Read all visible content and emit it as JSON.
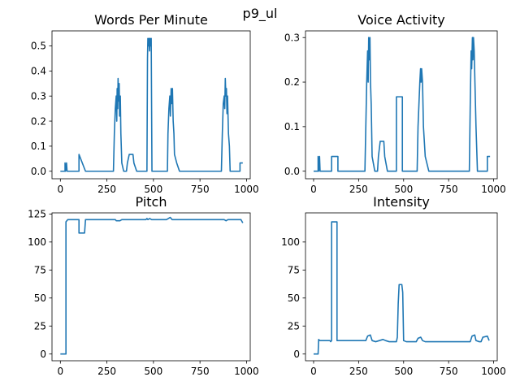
{
  "figure": {
    "suptitle": "p9_ul"
  },
  "chart_data": [
    {
      "type": "line",
      "title": "Words Per Minute",
      "xlim": [
        -45,
        1020
      ],
      "ylim": [
        -0.03,
        0.56
      ],
      "xticks": [
        0,
        250,
        500,
        750,
        1000
      ],
      "yticks": [
        0.0,
        0.1,
        0.2,
        0.3,
        0.4,
        0.5
      ],
      "ytick_decimals": 1,
      "series": [
        {
          "color": "#1f77b4",
          "points": [
            [
              0,
              0
            ],
            [
              25,
              0
            ],
            [
              25,
              0.033
            ],
            [
              28,
              0
            ],
            [
              33,
              0.033
            ],
            [
              36,
              0
            ],
            [
              100,
              0
            ],
            [
              100,
              0.067
            ],
            [
              135,
              0
            ],
            [
              285,
              0
            ],
            [
              290,
              0.15
            ],
            [
              295,
              0.25
            ],
            [
              300,
              0.3
            ],
            [
              303,
              0.2
            ],
            [
              305,
              0.33
            ],
            [
              308,
              0.25
            ],
            [
              310,
              0.37
            ],
            [
              313,
              0.28
            ],
            [
              316,
              0.35
            ],
            [
              318,
              0.22
            ],
            [
              322,
              0.3
            ],
            [
              325,
              0.15
            ],
            [
              330,
              0.033
            ],
            [
              340,
              0
            ],
            [
              355,
              0
            ],
            [
              360,
              0.033
            ],
            [
              370,
              0.067
            ],
            [
              390,
              0.067
            ],
            [
              395,
              0.033
            ],
            [
              410,
              0
            ],
            [
              465,
              0
            ],
            [
              468,
              0.45
            ],
            [
              470,
              0.53
            ],
            [
              473,
              0.5
            ],
            [
              476,
              0.53
            ],
            [
              479,
              0.48
            ],
            [
              482,
              0.53
            ],
            [
              485,
              0.5
            ],
            [
              488,
              0.53
            ],
            [
              492,
              0
            ],
            [
              575,
              0
            ],
            [
              578,
              0.15
            ],
            [
              583,
              0.25
            ],
            [
              588,
              0.3
            ],
            [
              591,
              0.22
            ],
            [
              595,
              0.33
            ],
            [
              598,
              0.27
            ],
            [
              602,
              0.33
            ],
            [
              606,
              0.2
            ],
            [
              610,
              0.15
            ],
            [
              613,
              0.067
            ],
            [
              625,
              0.033
            ],
            [
              640,
              0
            ],
            [
              865,
              0
            ],
            [
              870,
              0.15
            ],
            [
              875,
              0.27
            ],
            [
              880,
              0.3
            ],
            [
              883,
              0.25
            ],
            [
              886,
              0.37
            ],
            [
              889,
              0.3
            ],
            [
              892,
              0.33
            ],
            [
              895,
              0.23
            ],
            [
              898,
              0.3
            ],
            [
              903,
              0.15
            ],
            [
              908,
              0.1
            ],
            [
              912,
              0
            ],
            [
              965,
              0
            ],
            [
              965,
              0.033
            ],
            [
              980,
              0.033
            ]
          ]
        }
      ]
    },
    {
      "type": "line",
      "title": "Voice Activity",
      "xlim": [
        -45,
        1020
      ],
      "ylim": [
        -0.017,
        0.315
      ],
      "xticks": [
        0,
        250,
        500,
        750,
        1000
      ],
      "yticks": [
        0.0,
        0.1,
        0.2,
        0.3
      ],
      "ytick_decimals": 1,
      "series": [
        {
          "color": "#1f77b4",
          "points": [
            [
              0,
              0
            ],
            [
              25,
              0
            ],
            [
              25,
              0.033
            ],
            [
              28,
              0
            ],
            [
              33,
              0.033
            ],
            [
              36,
              0
            ],
            [
              100,
              0
            ],
            [
              100,
              0.033
            ],
            [
              135,
              0.033
            ],
            [
              135,
              0
            ],
            [
              285,
              0
            ],
            [
              290,
              0.1
            ],
            [
              295,
              0.2
            ],
            [
              300,
              0.27
            ],
            [
              303,
              0.2
            ],
            [
              306,
              0.3
            ],
            [
              310,
              0.25
            ],
            [
              313,
              0.3
            ],
            [
              316,
              0.2
            ],
            [
              320,
              0.15
            ],
            [
              325,
              0.033
            ],
            [
              340,
              0
            ],
            [
              355,
              0
            ],
            [
              360,
              0.033
            ],
            [
              370,
              0.067
            ],
            [
              390,
              0.067
            ],
            [
              395,
              0.033
            ],
            [
              410,
              0
            ],
            [
              460,
              0
            ],
            [
              460,
              0.167
            ],
            [
              493,
              0.167
            ],
            [
              493,
              0
            ],
            [
              575,
              0
            ],
            [
              580,
              0.1
            ],
            [
              585,
              0.15
            ],
            [
              590,
              0.2
            ],
            [
              594,
              0.23
            ],
            [
              597,
              0.2
            ],
            [
              600,
              0.23
            ],
            [
              605,
              0.2
            ],
            [
              610,
              0.1
            ],
            [
              620,
              0.033
            ],
            [
              640,
              0
            ],
            [
              865,
              0
            ],
            [
              870,
              0.15
            ],
            [
              875,
              0.27
            ],
            [
              878,
              0.23
            ],
            [
              882,
              0.3
            ],
            [
              885,
              0.25
            ],
            [
              888,
              0.3
            ],
            [
              892,
              0.27
            ],
            [
              896,
              0.2
            ],
            [
              902,
              0.1
            ],
            [
              910,
              0
            ],
            [
              965,
              0
            ],
            [
              965,
              0.033
            ],
            [
              980,
              0.033
            ]
          ]
        }
      ]
    },
    {
      "type": "line",
      "title": "Pitch",
      "xlim": [
        -45,
        1020
      ],
      "ylim": [
        -6,
        126
      ],
      "xticks": [
        0,
        250,
        500,
        750,
        1000
      ],
      "yticks": [
        0,
        25,
        50,
        75,
        100,
        125
      ],
      "ytick_decimals": 0,
      "series": [
        {
          "color": "#1f77b4",
          "points": [
            [
              0,
              0
            ],
            [
              30,
              0
            ],
            [
              30,
              118
            ],
            [
              40,
              120
            ],
            [
              100,
              120
            ],
            [
              100,
              108
            ],
            [
              130,
              108
            ],
            [
              135,
              120
            ],
            [
              295,
              120
            ],
            [
              300,
              119
            ],
            [
              320,
              119
            ],
            [
              330,
              120
            ],
            [
              460,
              120
            ],
            [
              465,
              121
            ],
            [
              470,
              120
            ],
            [
              480,
              121
            ],
            [
              490,
              120
            ],
            [
              570,
              120
            ],
            [
              580,
              121
            ],
            [
              590,
              122
            ],
            [
              600,
              120
            ],
            [
              880,
              120
            ],
            [
              890,
              119
            ],
            [
              900,
              120
            ],
            [
              970,
              120
            ],
            [
              980,
              117
            ]
          ]
        }
      ]
    },
    {
      "type": "line",
      "title": "Intensity",
      "xlim": [
        -45,
        1020
      ],
      "ylim": [
        -6,
        126
      ],
      "xticks": [
        0,
        250,
        500,
        750,
        1000
      ],
      "yticks": [
        0,
        25,
        50,
        75,
        100
      ],
      "ytick_decimals": 0,
      "series": [
        {
          "color": "#1f77b4",
          "points": [
            [
              0,
              0
            ],
            [
              25,
              0
            ],
            [
              28,
              13
            ],
            [
              35,
              12
            ],
            [
              90,
              12
            ],
            [
              95,
              11
            ],
            [
              100,
              12
            ],
            [
              100,
              118
            ],
            [
              130,
              118
            ],
            [
              130,
              12
            ],
            [
              290,
              12
            ],
            [
              300,
              16
            ],
            [
              315,
              17
            ],
            [
              325,
              12
            ],
            [
              345,
              11
            ],
            [
              365,
              12
            ],
            [
              385,
              13
            ],
            [
              400,
              12
            ],
            [
              420,
              11
            ],
            [
              460,
              11
            ],
            [
              465,
              15
            ],
            [
              470,
              45
            ],
            [
              475,
              62
            ],
            [
              490,
              62
            ],
            [
              495,
              55
            ],
            [
              500,
              12
            ],
            [
              515,
              11
            ],
            [
              570,
              11
            ],
            [
              580,
              14
            ],
            [
              595,
              15
            ],
            [
              605,
              12
            ],
            [
              620,
              11
            ],
            [
              870,
              11
            ],
            [
              880,
              16
            ],
            [
              895,
              17
            ],
            [
              902,
              12
            ],
            [
              920,
              11
            ],
            [
              930,
              11
            ],
            [
              940,
              15
            ],
            [
              965,
              16
            ],
            [
              975,
              12
            ]
          ]
        }
      ]
    }
  ]
}
